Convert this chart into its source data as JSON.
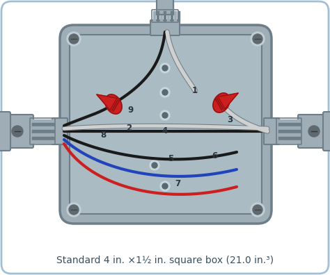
{
  "bg_color": "#ffffff",
  "bg_border_color": "#a0c0d8",
  "box_color": "#9eadb6",
  "box_inner_color": "#aabbc4",
  "box_dark": "#6e7e88",
  "box_light": "#c0cfd6",
  "wire_black": "#1a1a1a",
  "wire_white": "#d0d0d0",
  "wire_white_edge": "#b0b0b0",
  "wire_red": "#cc2020",
  "wire_blue": "#2244bb",
  "wire_cap_red": "#cc2020",
  "connector_color": "#8a9aa4",
  "screw_color": "#606870",
  "hole_color": "#c8d6dd",
  "hole_dark": "#5a6870",
  "label_color": "#2a3540",
  "caption_color": "#3a5060",
  "caption_text": "Standard 4 in. ×1½ in. square box (21.0 in.³)",
  "caption_fontsize": 10.0
}
